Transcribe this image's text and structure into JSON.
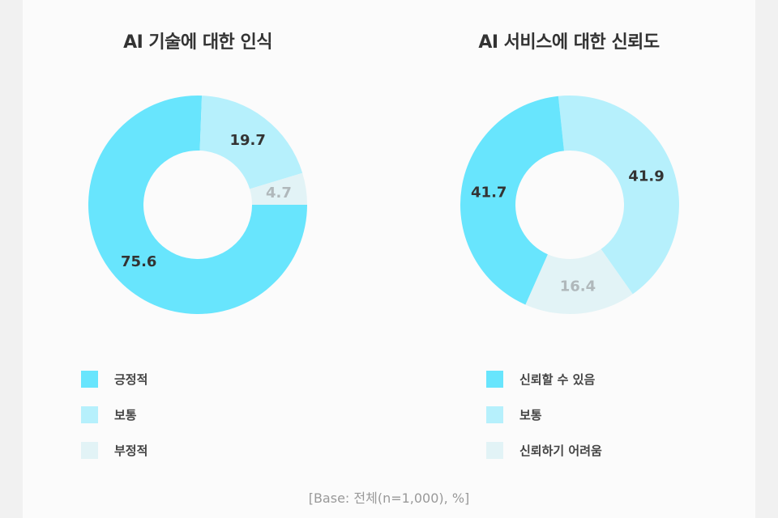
{
  "chart_data": [
    {
      "type": "pie",
      "donut": true,
      "title": "AI 기술에 대한 인식",
      "categories": [
        "긍정적",
        "보통",
        "부정적"
      ],
      "values": [
        75.6,
        19.7,
        4.7
      ],
      "colors": [
        "#68e5fd",
        "#b6f0fc",
        "#e2f3f6"
      ],
      "label_colors": [
        "#333333",
        "#333333",
        "#b0b8bb"
      ],
      "legend": "bottom"
    },
    {
      "type": "pie",
      "donut": true,
      "title": "AI 서비스에 대한 신뢰도",
      "categories": [
        "신뢰할 수 있음",
        "보통",
        "신뢰하기 어려움"
      ],
      "values": [
        41.7,
        41.9,
        16.4
      ],
      "colors": [
        "#68e5fd",
        "#b6f0fc",
        "#e2f3f6"
      ],
      "label_colors": [
        "#333333",
        "#333333",
        "#b0b8bb"
      ],
      "legend": "bottom"
    }
  ],
  "footnote": "[Base: 전체(n=1,000), %]"
}
